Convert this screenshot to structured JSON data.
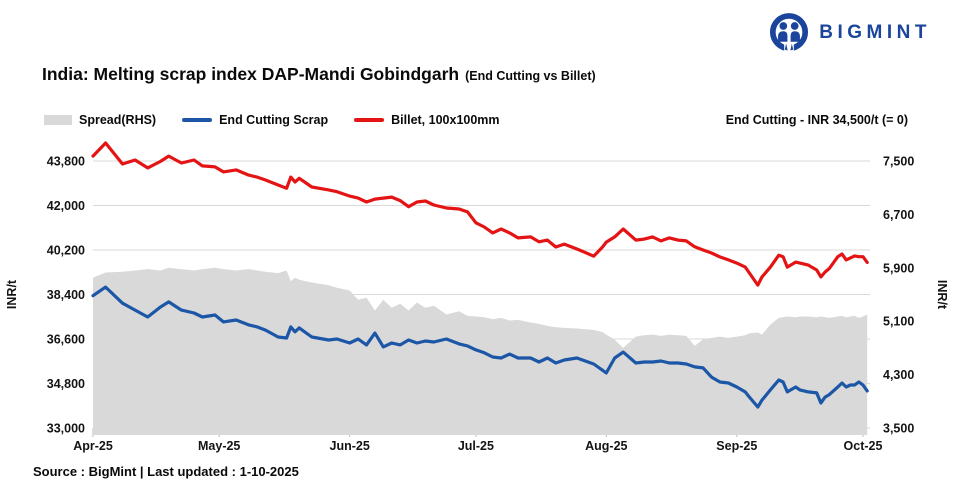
{
  "header": {
    "logo_text": "BIGMINT",
    "brand_color": "#1b459c"
  },
  "title": {
    "main": "India: Melting scrap index DAP-Mandi Gobindgarh",
    "suffix": "(End Cutting vs Billet)"
  },
  "annotation": "End Cutting - INR 34,500/t (= 0)",
  "footer": "Source : BigMint | Last updated : 1-10-2025",
  "chart_data": {
    "type": "line",
    "title": "India: Melting scrap index DAP-Mandi Gobindgarh (End Cutting vs Billet)",
    "x_unit": "days since 01-Apr-2025",
    "x_axis": {
      "tick_labels": [
        "Apr-25",
        "May-25",
        "Jun-25",
        "Jul-25",
        "Aug-25",
        "Sep-25",
        "Oct-25"
      ],
      "tick_days": [
        0,
        30,
        61,
        91,
        122,
        153,
        183
      ]
    },
    "left_axis": {
      "title": "INR/t",
      "tick_labels": [
        "43,800",
        "42,000",
        "40,200",
        "38,400",
        "36,600",
        "34,800",
        "33,000"
      ],
      "tick_values": [
        43800,
        42000,
        40200,
        38400,
        36600,
        34800,
        33000
      ],
      "range": [
        33000,
        43800
      ]
    },
    "right_axis": {
      "title": "INR/t",
      "tick_labels": [
        "7,500",
        "6,700",
        "5,900",
        "5,100",
        "4,300",
        "3,500"
      ],
      "tick_values": [
        7500,
        6700,
        5900,
        5100,
        4300,
        3500
      ],
      "range": [
        3500,
        7500
      ]
    },
    "grid": "horizontal",
    "legend_position": "top-left",
    "days": [
      0,
      3,
      7,
      10,
      13,
      16,
      18,
      21,
      24,
      26,
      29,
      31,
      34,
      37,
      39,
      41,
      44,
      46,
      47,
      48,
      49,
      52,
      56,
      58,
      61,
      63,
      65,
      67,
      69,
      71,
      73,
      75,
      77,
      79,
      81,
      84,
      87,
      89,
      91,
      93,
      95,
      97,
      99,
      101,
      104,
      106,
      108,
      110,
      112,
      115,
      117,
      119,
      121,
      122,
      124,
      126,
      129,
      131,
      133,
      135,
      137,
      139,
      141,
      143,
      145,
      147,
      149,
      151,
      153,
      155,
      156,
      158,
      159,
      161,
      163,
      164,
      165,
      167,
      168,
      170,
      172,
      173,
      174,
      175,
      177,
      178,
      179,
      180,
      181,
      182,
      183,
      184
    ],
    "series": [
      {
        "name": "Spread(RHS)",
        "type": "area",
        "axis": "right",
        "color": "#d9d9d9",
        "values": [
          5750,
          5830,
          5840,
          5860,
          5880,
          5860,
          5900,
          5880,
          5860,
          5880,
          5900,
          5880,
          5860,
          5880,
          5860,
          5840,
          5820,
          5860,
          5700,
          5750,
          5720,
          5680,
          5640,
          5600,
          5560,
          5420,
          5450,
          5260,
          5420,
          5300,
          5360,
          5260,
          5380,
          5300,
          5330,
          5200,
          5250,
          5180,
          5170,
          5160,
          5130,
          5150,
          5110,
          5120,
          5080,
          5060,
          5030,
          5010,
          5000,
          4990,
          4980,
          4970,
          4940,
          4900,
          4820,
          4700,
          4870,
          4890,
          4900,
          4880,
          4900,
          4890,
          4880,
          4730,
          4830,
          4850,
          4870,
          4850,
          4870,
          4890,
          4920,
          4930,
          4900,
          5050,
          5150,
          5160,
          5170,
          5160,
          5170,
          5170,
          5160,
          5170,
          5160,
          5150,
          5170,
          5180,
          5160,
          5170,
          5180,
          5150,
          5170,
          5200
        ]
      },
      {
        "name": "End Cutting Scrap",
        "type": "line",
        "axis": "left",
        "color": "#1b56a7",
        "values": [
          38350,
          38700,
          38050,
          37770,
          37490,
          37890,
          38100,
          37770,
          37650,
          37490,
          37570,
          37290,
          37370,
          37170,
          37090,
          36960,
          36680,
          36640,
          37090,
          36890,
          37050,
          36680,
          36560,
          36600,
          36440,
          36600,
          36360,
          36840,
          36280,
          36440,
          36360,
          36560,
          36440,
          36520,
          36480,
          36600,
          36400,
          36320,
          36160,
          36040,
          35870,
          35830,
          35990,
          35830,
          35830,
          35670,
          35830,
          35630,
          35750,
          35830,
          35710,
          35590,
          35350,
          35230,
          35830,
          36070,
          35630,
          35670,
          35670,
          35710,
          35630,
          35630,
          35590,
          35470,
          35430,
          35060,
          34860,
          34820,
          34660,
          34460,
          34250,
          33850,
          34130,
          34540,
          34940,
          34860,
          34460,
          34660,
          34540,
          34460,
          34420,
          34010,
          34250,
          34350,
          34660,
          34820,
          34660,
          34740,
          34740,
          34860,
          34740,
          34500
        ]
      },
      {
        "name": "Billet, 100x100mm",
        "type": "line",
        "axis": "left",
        "color": "#e51414",
        "values": [
          44000,
          44530,
          43680,
          43840,
          43520,
          43780,
          44000,
          43720,
          43840,
          43600,
          43560,
          43360,
          43440,
          43230,
          43150,
          43030,
          42830,
          42700,
          43150,
          42950,
          43100,
          42750,
          42630,
          42560,
          42380,
          42300,
          42140,
          42260,
          42300,
          42340,
          42200,
          41950,
          42140,
          42180,
          42020,
          41900,
          41860,
          41740,
          41300,
          41130,
          40890,
          41050,
          40890,
          40690,
          40730,
          40530,
          40600,
          40320,
          40440,
          40240,
          40100,
          39950,
          40300,
          40520,
          40730,
          41050,
          40600,
          40640,
          40730,
          40570,
          40690,
          40600,
          40570,
          40330,
          40200,
          40080,
          39920,
          39800,
          39670,
          39510,
          39270,
          38780,
          39110,
          39510,
          39990,
          39930,
          39510,
          39710,
          39670,
          39590,
          39390,
          39110,
          39310,
          39450,
          39930,
          40040,
          39800,
          39880,
          39960,
          39930,
          39930,
          39700
        ]
      }
    ]
  }
}
